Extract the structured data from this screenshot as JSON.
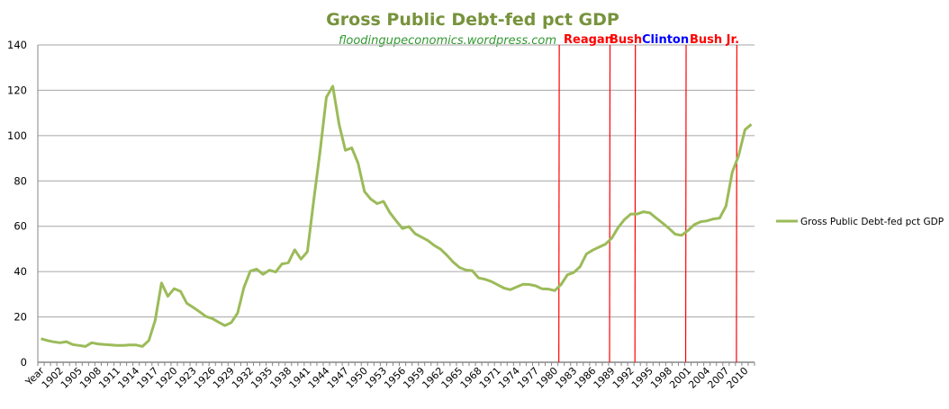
{
  "chart_data": {
    "type": "line",
    "title": "Gross Public Debt-fed pct GDP",
    "subtitle": "floodingupeconomics.wordpress.com",
    "xlabel": "",
    "ylabel": "",
    "ylim": [
      0,
      140
    ],
    "yticks": [
      0,
      20,
      40,
      60,
      80,
      100,
      120,
      140
    ],
    "grid": true,
    "legend_position": "right",
    "line_color": "#9BBB59",
    "categories_first_label": "Year",
    "categories_start_year": 1900,
    "categories_end_year": 2011,
    "x_label_every": 3,
    "series": [
      {
        "name": "Gross Public Debt-fed pct GDP",
        "values": [
          10.4,
          9.6,
          9.0,
          8.6,
          9.1,
          7.8,
          7.4,
          7.0,
          8.6,
          8.1,
          7.8,
          7.6,
          7.4,
          7.4,
          7.6,
          7.6,
          7.0,
          9.6,
          18.4,
          35.0,
          29.1,
          32.5,
          31.3,
          26.0,
          24.2,
          22.3,
          20.2,
          19.3,
          17.7,
          16.2,
          17.5,
          21.7,
          33.0,
          40.2,
          41.1,
          38.8,
          40.6,
          39.8,
          43.4,
          43.9,
          49.6,
          45.5,
          48.8,
          71.3,
          93.1,
          116.9,
          121.8,
          105.0,
          93.5,
          94.6,
          87.8,
          75.3,
          72.0,
          70.0,
          71.0,
          66.0,
          62.4,
          59.0,
          59.9,
          56.7,
          55.2,
          53.7,
          51.5,
          49.9,
          47.2,
          44.2,
          41.8,
          40.7,
          40.4,
          37.2,
          36.6,
          35.6,
          34.2,
          32.7,
          32.0,
          33.2,
          34.4,
          34.3,
          33.7,
          32.4,
          32.3,
          31.6,
          34.3,
          38.6,
          39.6,
          42.2,
          47.8,
          49.5,
          50.8,
          52.1,
          54.8,
          59.4,
          63.0,
          65.4,
          65.4,
          66.4,
          65.9,
          63.6,
          61.4,
          59.1,
          56.5,
          56.0,
          58.1,
          60.7,
          62.0,
          62.4,
          63.2,
          63.6,
          68.9,
          83.9,
          91.2,
          102.6,
          105.0
        ]
      }
    ],
    "annotations": [
      {
        "label": "Reagan",
        "year": 1981,
        "color": "#FF0000"
      },
      {
        "label": "Bush",
        "year": 1989,
        "color": "#FF0000"
      },
      {
        "label": "Clinton",
        "year": 1993,
        "color": "#0000FF"
      },
      {
        "label": "Bush Jr.",
        "year": 2001,
        "color": "#FF0000"
      },
      {
        "label": "",
        "year": 2009,
        "color": "#FF0000"
      }
    ]
  }
}
